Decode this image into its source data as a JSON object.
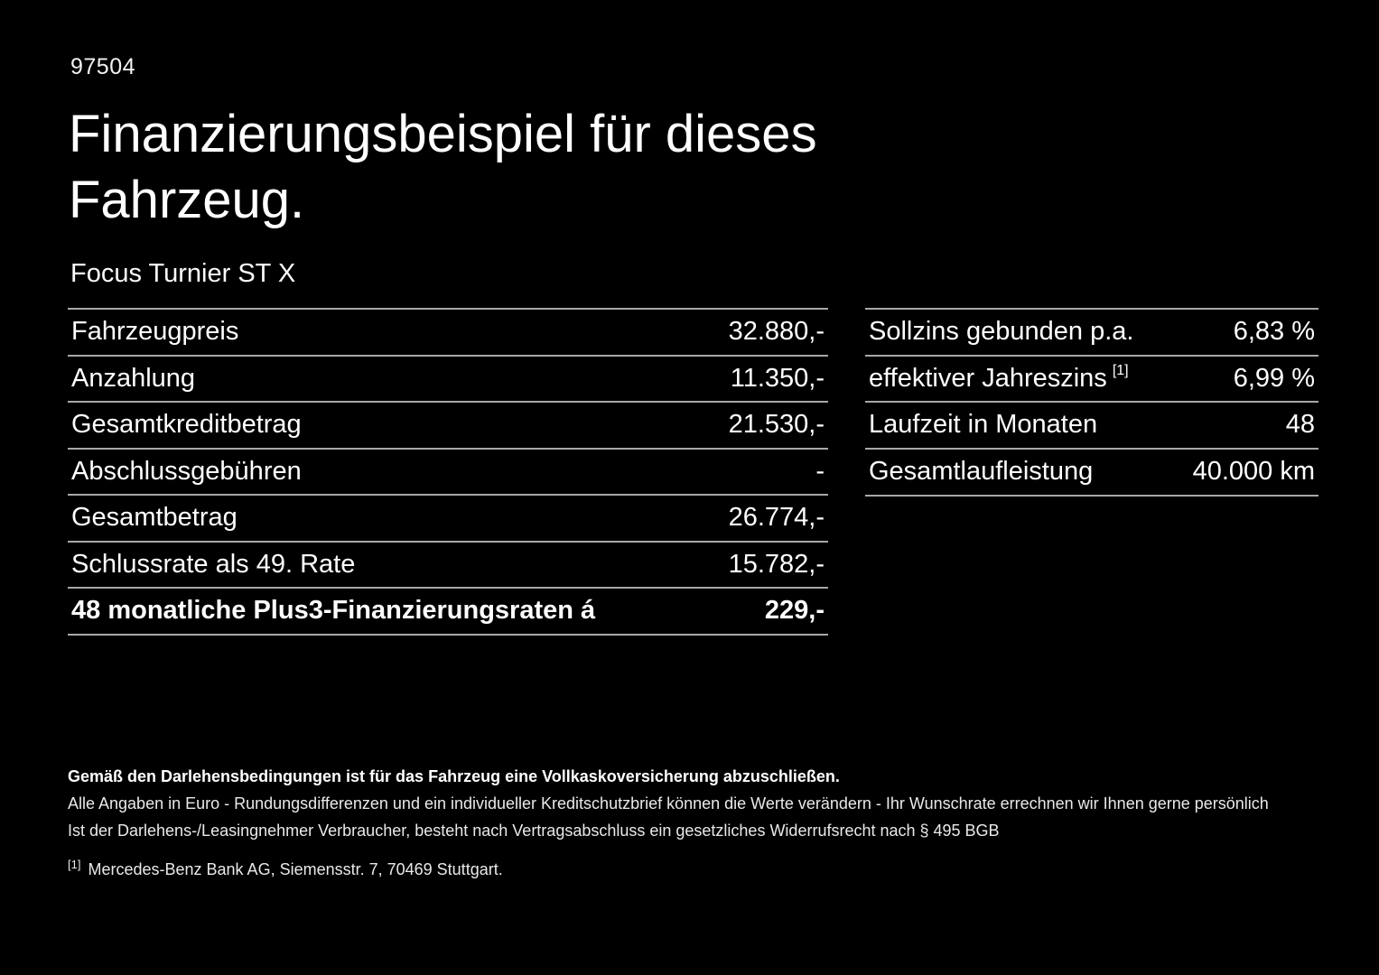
{
  "page": {
    "doc_number": "97504",
    "title_line1": "Finanzierungsbeispiel für dieses",
    "title_line2": "Fahrzeug.",
    "vehicle_name": "Focus Turnier ST X"
  },
  "left_table": {
    "rows": [
      {
        "label": "Fahrzeugpreis",
        "value": "32.880,-"
      },
      {
        "label": "Anzahlung",
        "value": "11.350,-"
      },
      {
        "label": "Gesamtkreditbetrag",
        "value": "21.530,-"
      },
      {
        "label": "Abschlussgebühren",
        "value": "-"
      },
      {
        "label": "Gesamtbetrag",
        "value": "26.774,-"
      },
      {
        "label": "Schlussrate als 49. Rate",
        "value": "15.782,-"
      },
      {
        "label": "48 monatliche Plus3-Finanzierungsraten á",
        "value": "229,-"
      }
    ]
  },
  "right_table": {
    "rows": [
      {
        "label": "Sollzins gebunden p.a.",
        "value": "6,83 %"
      },
      {
        "label": "effektiver Jahreszins",
        "superscript": "[1]",
        "value": "6,99 %"
      },
      {
        "label": "Laufzeit in Monaten",
        "value": "48"
      },
      {
        "label": "Gesamtlaufleistung",
        "value": "40.000 km"
      }
    ]
  },
  "footnotes": {
    "line1": "Gemäß den Darlehensbedingungen ist für das Fahrzeug eine Vollkaskoversicherung abzuschließen.",
    "line2": "Alle Angaben in Euro - Rundungsdifferenzen und ein individueller Kreditschutzbrief können die Werte verändern - Ihr Wunschrate errechnen wir Ihnen gerne persönlich",
    "line3": "Ist der Darlehens-/Leasingnehmer Verbraucher, besteht nach Vertragsabschluss ein gesetzliches Widerrufsrecht nach § 495 BGB",
    "footnote_marker": "[1]",
    "footnote_text": "Mercedes-Benz Bank AG, Siemensstr. 7, 70469 Stuttgart."
  },
  "colors": {
    "background": "#000000",
    "text": "#ffffff",
    "divider": "#a8a8a8"
  }
}
